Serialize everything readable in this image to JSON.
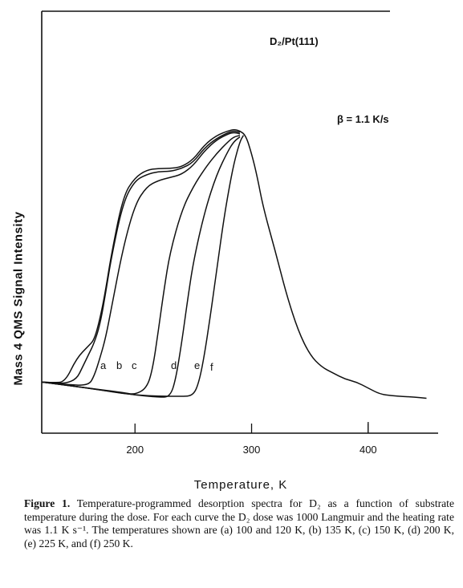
{
  "figure": {
    "caption_label": "Figure 1.",
    "caption_text": "Temperature-programmed desorption spectra for D₂ as a function of substrate temperature during the dose. For each curve the D₂ dose was 1000 Langmuir and the heating rate was 1.1 K s⁻¹. The temperatures shown are (a) 100 and 120 K, (b) 135 K, (c) 150 K, (d) 200 K, (e) 225 K, and (f) 250 K."
  },
  "chart_data": {
    "type": "line",
    "title": "",
    "annotations": [
      "D₂/Pt(111)",
      "β = 1.1 K/s"
    ],
    "xlabel": "Temperature, K",
    "ylabel": "Mass 4 QMS Signal Intensity",
    "xlim": [
      120,
      460
    ],
    "ylim": [
      0,
      100
    ],
    "xticks": [
      200,
      300,
      400
    ],
    "grid": false,
    "legend": "none",
    "series": [
      {
        "name": "a",
        "points": [
          [
            120,
            5
          ],
          [
            130,
            4.8
          ],
          [
            140,
            5
          ],
          [
            150,
            13
          ],
          [
            160,
            17
          ],
          [
            165,
            19
          ],
          [
            170,
            26
          ],
          [
            175,
            36
          ],
          [
            180,
            48
          ],
          [
            190,
            67
          ],
          [
            200,
            73
          ],
          [
            210,
            75.5
          ],
          [
            220,
            76
          ],
          [
            230,
            76
          ],
          [
            240,
            76.5
          ],
          [
            250,
            79
          ],
          [
            260,
            84
          ],
          [
            270,
            87
          ],
          [
            280,
            88.5
          ],
          [
            285,
            89
          ],
          [
            290,
            88.5
          ],
          [
            295,
            87
          ],
          [
            300,
            81
          ],
          [
            305,
            73
          ],
          [
            310,
            63
          ],
          [
            320,
            49
          ],
          [
            330,
            34
          ],
          [
            340,
            22
          ],
          [
            350,
            14
          ],
          [
            360,
            10
          ],
          [
            370,
            8
          ],
          [
            380,
            6
          ],
          [
            390,
            5
          ],
          [
            400,
            3
          ],
          [
            410,
            1
          ],
          [
            420,
            0.5
          ],
          [
            430,
            0.2
          ],
          [
            440,
            0
          ],
          [
            450,
            -0.4
          ]
        ]
      },
      {
        "name": "b",
        "points": [
          [
            120,
            5
          ],
          [
            130,
            4.8
          ],
          [
            140,
            4.5
          ],
          [
            150,
            6
          ],
          [
            155,
            10
          ],
          [
            160,
            14
          ],
          [
            165,
            18
          ],
          [
            170,
            24
          ],
          [
            175,
            35
          ],
          [
            180,
            47
          ],
          [
            190,
            65
          ],
          [
            200,
            72
          ],
          [
            210,
            74
          ],
          [
            220,
            75
          ],
          [
            230,
            75
          ],
          [
            240,
            76
          ],
          [
            250,
            78
          ],
          [
            260,
            83
          ],
          [
            270,
            86
          ],
          [
            280,
            88
          ],
          [
            285,
            88.5
          ],
          [
            290,
            88
          ]
        ]
      },
      {
        "name": "c",
        "points": [
          [
            120,
            5
          ],
          [
            140,
            4.2
          ],
          [
            160,
            3.8
          ],
          [
            165,
            7
          ],
          [
            170,
            13
          ],
          [
            175,
            20
          ],
          [
            180,
            30
          ],
          [
            190,
            50
          ],
          [
            200,
            64
          ],
          [
            210,
            70
          ],
          [
            220,
            72
          ],
          [
            230,
            73
          ],
          [
            240,
            74
          ],
          [
            250,
            77
          ],
          [
            260,
            82
          ],
          [
            270,
            85.5
          ],
          [
            280,
            87.5
          ],
          [
            285,
            88
          ],
          [
            290,
            87.5
          ]
        ]
      },
      {
        "name": "d",
        "points": [
          [
            120,
            5
          ],
          [
            160,
            3
          ],
          [
            190,
            1.5
          ],
          [
            200,
            0.8
          ],
          [
            210,
            3
          ],
          [
            215,
            9
          ],
          [
            220,
            22
          ],
          [
            225,
            36
          ],
          [
            230,
            48
          ],
          [
            240,
            62
          ],
          [
            250,
            70
          ],
          [
            260,
            76
          ],
          [
            270,
            81
          ],
          [
            280,
            85
          ],
          [
            285,
            86.5
          ],
          [
            290,
            87
          ]
        ]
      },
      {
        "name": "e",
        "points": [
          [
            120,
            5
          ],
          [
            160,
            3
          ],
          [
            200,
            0.7
          ],
          [
            220,
            0
          ],
          [
            230,
            0
          ],
          [
            235,
            6
          ],
          [
            240,
            18
          ],
          [
            245,
            32
          ],
          [
            250,
            45
          ],
          [
            260,
            62
          ],
          [
            270,
            74
          ],
          [
            280,
            82
          ],
          [
            285,
            85
          ],
          [
            290,
            86.5
          ]
        ]
      },
      {
        "name": "f",
        "points": [
          [
            120,
            5
          ],
          [
            160,
            3
          ],
          [
            200,
            0.5
          ],
          [
            240,
            0.2
          ],
          [
            250,
            0.5
          ],
          [
            255,
            5
          ],
          [
            260,
            15
          ],
          [
            265,
            28
          ],
          [
            270,
            42
          ],
          [
            275,
            56
          ],
          [
            280,
            68
          ],
          [
            285,
            78
          ],
          [
            290,
            85
          ],
          [
            293,
            87
          ]
        ]
      }
    ]
  }
}
